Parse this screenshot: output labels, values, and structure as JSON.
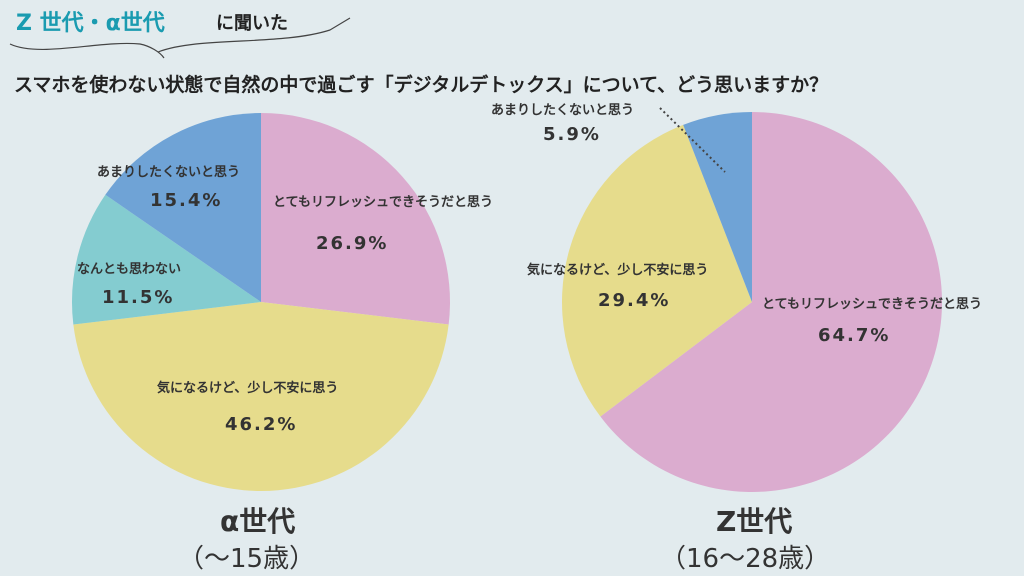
{
  "header": {
    "highlight": "Z 世代・α世代",
    "suffix": "に聞いた"
  },
  "chart_data": [
    {
      "type": "pie",
      "title": "スマホを使わない状態で自然の中で過ごす「デジタルデトックス」について、どう思いますか？",
      "group": "α世代",
      "group_sub": "（〜15歳）",
      "slices": [
        {
          "label": "とてもリフレッシュできそうだと思う",
          "value": 26.9,
          "display": "26.9%",
          "color": "#dbaccf"
        },
        {
          "label": "気になるけど、少し不安に思う",
          "value": 46.2,
          "display": "46.2%",
          "color": "#e6dc8c"
        },
        {
          "label": "なんとも思わない",
          "value": 11.5,
          "display": "11.5%",
          "color": "#84ccd0"
        },
        {
          "label": "あまりしたくないと思う",
          "value": 15.4,
          "display": "15.4%",
          "color": "#6fa3d6"
        }
      ]
    },
    {
      "type": "pie",
      "group": "Z世代",
      "group_sub": "（16〜28歳）",
      "slices": [
        {
          "label": "とてもリフレッシュできそうだと思う",
          "value": 64.7,
          "display": "64.7%",
          "color": "#dbaccf"
        },
        {
          "label": "気になるけど、少し不安に思う",
          "value": 29.4,
          "display": "29.4%",
          "color": "#e6dc8c"
        },
        {
          "label": "あまりしたくないと思う",
          "value": 5.9,
          "display": "5.9%",
          "color": "#6fa3d6"
        }
      ]
    }
  ]
}
